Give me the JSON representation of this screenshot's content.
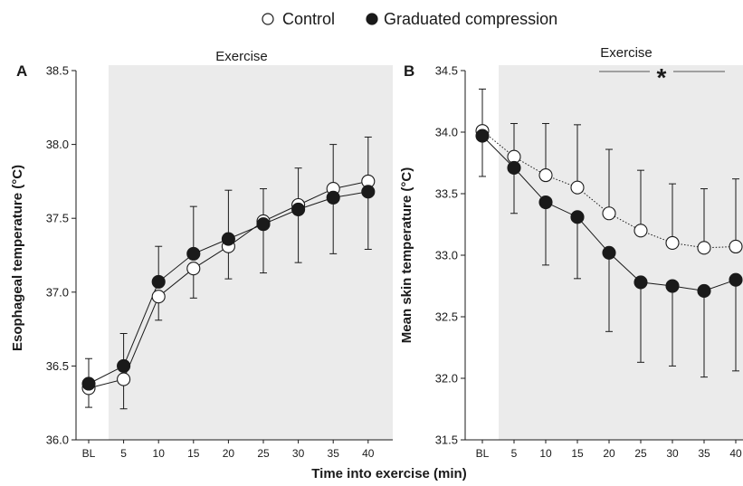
{
  "legend": {
    "series": [
      {
        "name": "Control",
        "marker": "open"
      },
      {
        "name": "Graduated compression",
        "marker": "filled"
      }
    ]
  },
  "shared_xlabel": "Time into exercise (min)",
  "colors": {
    "shade": "#ebebeb",
    "ink": "#1a1a1a",
    "open_fill": "#ffffff",
    "filled_fill": "#1a1a1a"
  },
  "chart_data": [
    {
      "type": "line",
      "panel": "A",
      "shaded_region_label": "Exercise",
      "ylabel": "Esophageal temperature (°C)",
      "xlabel": "",
      "categories": [
        "BL",
        "5",
        "10",
        "15",
        "20",
        "25",
        "30",
        "35",
        "40"
      ],
      "ylim": [
        36.0,
        38.5
      ],
      "yticks": [
        "36.0",
        "36.5",
        "37.0",
        "37.5",
        "38.0",
        "38.5"
      ],
      "series": [
        {
          "name": "Control",
          "marker": "open",
          "line": "solid",
          "values": [
            36.35,
            36.41,
            36.97,
            37.16,
            37.31,
            37.48,
            37.59,
            37.7,
            37.75
          ],
          "error": [
            0.13,
            0.2,
            0.16,
            0.2,
            0.22,
            0.22,
            0.25,
            0.3,
            0.3
          ]
        },
        {
          "name": "Graduated compression",
          "marker": "filled",
          "line": "solid",
          "values": [
            36.38,
            36.5,
            37.07,
            37.26,
            37.36,
            37.46,
            37.56,
            37.64,
            37.68
          ],
          "error": [
            0.17,
            0.22,
            0.24,
            0.32,
            0.33,
            0.33,
            0.36,
            0.38,
            0.39
          ]
        }
      ]
    },
    {
      "type": "line",
      "panel": "B",
      "shaded_region_label": "Exercise",
      "significance": {
        "symbol": "*",
        "from": "20",
        "to": "40"
      },
      "ylabel": "Mean skin temperature (°C)",
      "xlabel": "",
      "categories": [
        "BL",
        "5",
        "10",
        "15",
        "20",
        "25",
        "30",
        "35",
        "40"
      ],
      "ylim": [
        31.5,
        34.5
      ],
      "yticks": [
        "31.5",
        "32.0",
        "32.5",
        "33.0",
        "33.5",
        "34.0",
        "34.5"
      ],
      "series": [
        {
          "name": "Control",
          "marker": "open",
          "line": "dotted",
          "values": [
            34.01,
            33.8,
            33.65,
            33.55,
            33.34,
            33.2,
            33.1,
            33.06,
            33.07
          ],
          "error": [
            0.34,
            0.27,
            0.42,
            0.51,
            0.52,
            0.49,
            0.48,
            0.48,
            0.55
          ]
        },
        {
          "name": "Graduated compression",
          "marker": "filled",
          "line": "solid",
          "values": [
            33.97,
            33.71,
            33.43,
            33.31,
            33.02,
            32.78,
            32.75,
            32.71,
            32.8
          ],
          "error": [
            0.33,
            0.37,
            0.51,
            0.5,
            0.64,
            0.65,
            0.65,
            0.7,
            0.74
          ]
        }
      ]
    }
  ]
}
